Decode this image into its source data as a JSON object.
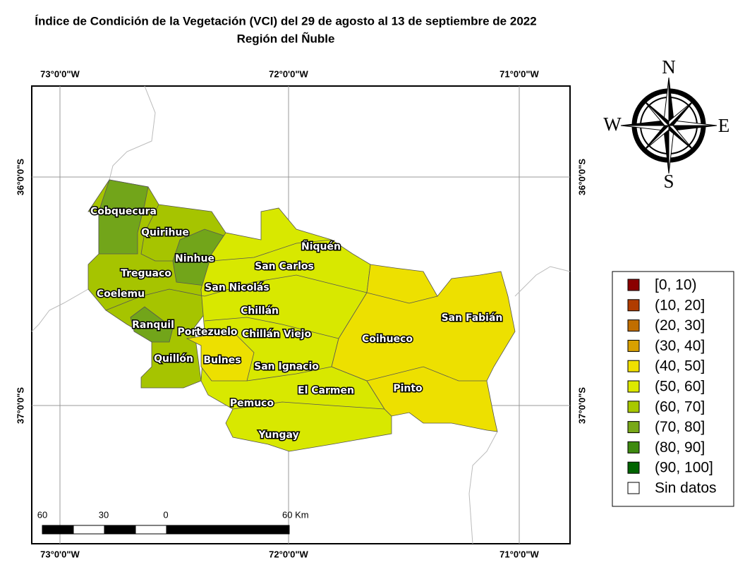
{
  "title": "Índice de Condición de la Vegetación (VCI) del 29 de agosto al 13 de septiembre de 2022",
  "subtitle": "Región del Ñuble",
  "graticule": {
    "lon_labels": [
      "73°0'0\"W",
      "72°0'0\"W",
      "71°0'0\"W"
    ],
    "lat_labels": [
      "36°0'0\"S",
      "37°0'0\"S"
    ]
  },
  "communes": [
    "Cobquecura",
    "Quirihue",
    "Ñiquén",
    "Ninhue",
    "San Carlos",
    "Treguaco",
    "San Nicolás",
    "Coelemu",
    "Chillán",
    "San Fabián",
    "Ranquil",
    "Portezuelo",
    "Chillán Viejo",
    "Coihueco",
    "Quillón",
    "Bulnes",
    "San Ignacio",
    "Pinto",
    "El Carmen",
    "Pemuco",
    "Yungay"
  ],
  "legend": [
    {
      "label": "[0, 10)",
      "color": "#8b0000"
    },
    {
      "label": "(10, 20]",
      "color": "#b03c00"
    },
    {
      "label": "(20, 30]",
      "color": "#c06e00"
    },
    {
      "label": "(30, 40]",
      "color": "#d8a000"
    },
    {
      "label": "(40, 50]",
      "color": "#f0e000"
    },
    {
      "label": "(50, 60]",
      "color": "#dce800"
    },
    {
      "label": "(60, 70]",
      "color": "#a8c800"
    },
    {
      "label": "(70, 80]",
      "color": "#78a818"
    },
    {
      "label": "(80, 90]",
      "color": "#3e8a10"
    },
    {
      "label": "(90, 100]",
      "color": "#006400"
    },
    {
      "label": "Sin datos",
      "color": "#ffffff"
    }
  ],
  "scale_bar": [
    "60",
    "30",
    "0",
    "60 Km"
  ],
  "compass": [
    "N",
    "E",
    "S",
    "W"
  ]
}
